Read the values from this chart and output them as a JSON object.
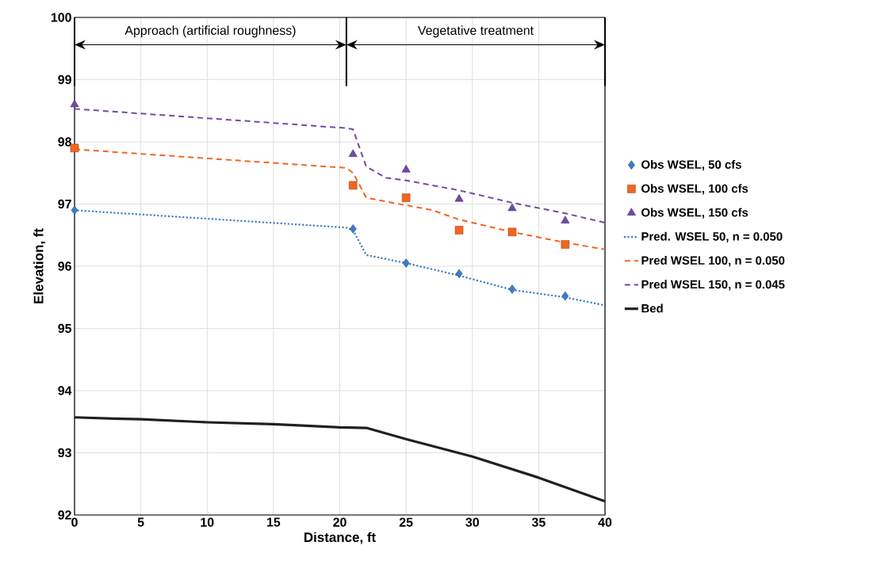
{
  "chart_data": {
    "type": "line",
    "xlabel": "Distance, ft",
    "ylabel": "Elevation, ft",
    "xlim": [
      0,
      40
    ],
    "ylim": [
      92,
      100
    ],
    "xticks": [
      0,
      5,
      10,
      15,
      20,
      25,
      30,
      35,
      40
    ],
    "yticks": [
      92,
      93,
      94,
      95,
      96,
      97,
      98,
      99,
      100
    ],
    "grid": true,
    "legend": "right",
    "ref_lines": [
      {
        "axis": "x",
        "value": 0
      },
      {
        "axis": "x",
        "value": 20.5
      },
      {
        "axis": "x",
        "value": 40
      }
    ],
    "annotations": [
      "Approach (artificial roughness)",
      "Vegetative treatment"
    ],
    "series": [
      {
        "name": "Obs WSEL, 50 cfs",
        "type": "scatter",
        "marker": "diamond",
        "color": "#3b7dc4",
        "x": [
          0,
          21,
          25,
          29,
          33,
          37
        ],
        "values": [
          96.9,
          96.6,
          96.05,
          95.88,
          95.63,
          95.52
        ]
      },
      {
        "name": "Obs WSEL, 100 cfs",
        "type": "scatter",
        "marker": "square",
        "color": "#f26522",
        "x": [
          0,
          21,
          25,
          29,
          33,
          37
        ],
        "values": [
          97.9,
          97.3,
          97.1,
          96.58,
          96.55,
          96.35
        ]
      },
      {
        "name": "Obs WSEL, 150 cfs",
        "type": "scatter",
        "marker": "triangle",
        "color": "#7349a5",
        "x": [
          0,
          21,
          25,
          29,
          33,
          37
        ],
        "values": [
          98.6,
          97.8,
          97.55,
          97.08,
          96.93,
          96.73
        ]
      },
      {
        "name": "Pred. WSEL 50, n = 0.050",
        "line_style": "dotted",
        "color": "#3b7dc4",
        "x": [
          0,
          20.5,
          21,
          22,
          25,
          29,
          33,
          37,
          40
        ],
        "values": [
          96.9,
          96.62,
          96.58,
          96.18,
          96.05,
          95.85,
          95.62,
          95.5,
          95.37
        ]
      },
      {
        "name": "Pred WSEL 100, n = 0.050",
        "line_style": "dashed",
        "color": "#f26522",
        "x": [
          0,
          20.5,
          21,
          22,
          25,
          27,
          29,
          33,
          37,
          40
        ],
        "values": [
          97.88,
          97.58,
          97.5,
          97.1,
          96.98,
          96.9,
          96.75,
          96.55,
          96.38,
          96.27
        ]
      },
      {
        "name": "Pred WSEL 150, n = 0.045",
        "line_style": "dashed",
        "color": "#7349a5",
        "x": [
          0,
          20.5,
          21,
          22,
          23.5,
          25,
          27,
          29,
          33,
          37,
          40
        ],
        "values": [
          98.53,
          98.22,
          98.2,
          97.6,
          97.42,
          97.38,
          97.3,
          97.22,
          97.02,
          96.85,
          96.7
        ]
      },
      {
        "name": "Bed",
        "line_style": "solid",
        "color": "#231f20",
        "x": [
          0,
          3,
          5,
          10,
          15,
          20,
          22,
          23,
          25,
          30,
          35,
          40
        ],
        "values": [
          93.57,
          93.55,
          93.54,
          93.49,
          93.46,
          93.41,
          93.4,
          93.34,
          93.22,
          92.94,
          92.6,
          92.22
        ]
      }
    ]
  }
}
